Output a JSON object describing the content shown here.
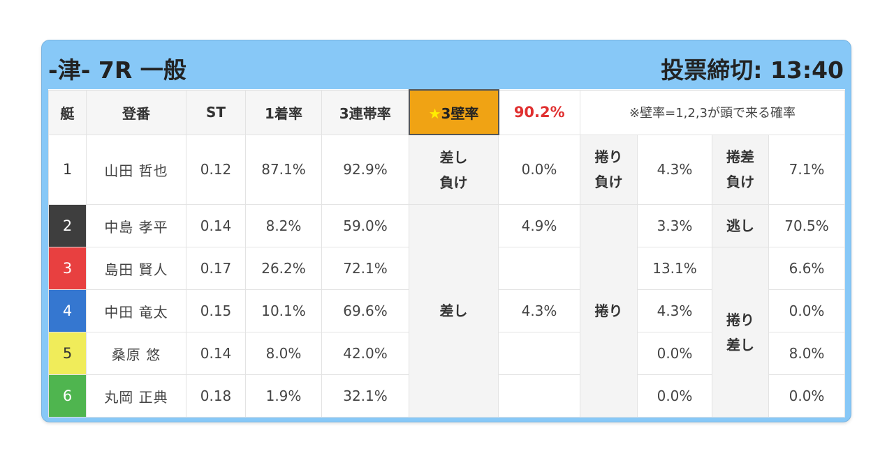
{
  "header": {
    "title": "-津- 7R 一般",
    "deadline": "投票締切: 13:40"
  },
  "columns": {
    "boat": "艇",
    "name": "登番",
    "st": "ST",
    "first_rate": "1着率",
    "top3_rate": "3連帯率",
    "wall_star": "★",
    "wall_label": "3壁率",
    "wall_pct": "90.2%",
    "note": "※壁率=1,2,3が頭で来る確率"
  },
  "colors": {
    "boat1": "#ffffff",
    "boat2": "#3e3e3e",
    "boat3": "#e84040",
    "boat4": "#3577d0",
    "boat5": "#f0ec5a",
    "boat6": "#4fb54f",
    "accent": "#f0a314",
    "highlight_text": "#e03030",
    "frame": "#87c8f7"
  },
  "labels": {
    "sashi_make_1": "差し",
    "sashi_make_2": "負け",
    "makuri_make_1": "捲り",
    "makuri_make_2": "負け",
    "makurisashi_make_1": "捲差",
    "makurisashi_make_2": "負け",
    "nige": "逃し",
    "sashi": "差し",
    "makuri": "捲り",
    "makurisashi_1": "捲り",
    "makurisashi_2": "差し"
  },
  "rows": [
    {
      "boat": "1",
      "name": "山田 哲也",
      "st": "0.12",
      "first": "87.1%",
      "top3": "92.9%",
      "sashi": "0.0%",
      "makuri": "4.3%",
      "makurisashi": "7.1%"
    },
    {
      "boat": "2",
      "name": "中島 孝平",
      "st": "0.14",
      "first": "8.2%",
      "top3": "59.0%",
      "sashi": "4.9%",
      "makuri": "3.3%",
      "makurisashi": "70.5%"
    },
    {
      "boat": "3",
      "name": "島田 賢人",
      "st": "0.17",
      "first": "26.2%",
      "top3": "72.1%",
      "sashi": "",
      "makuri": "13.1%",
      "makurisashi": "6.6%"
    },
    {
      "boat": "4",
      "name": "中田 竜太",
      "st": "0.15",
      "first": "10.1%",
      "top3": "69.6%",
      "sashi": "4.3%",
      "makuri": "4.3%",
      "makurisashi": "0.0%"
    },
    {
      "boat": "5",
      "name": "桑原 悠",
      "st": "0.14",
      "first": "8.0%",
      "top3": "42.0%",
      "sashi": "",
      "makuri": "0.0%",
      "makurisashi": "8.0%"
    },
    {
      "boat": "6",
      "name": "丸岡 正典",
      "st": "0.18",
      "first": "1.9%",
      "top3": "32.1%",
      "sashi": "",
      "makuri": "0.0%",
      "makurisashi": "0.0%"
    }
  ]
}
